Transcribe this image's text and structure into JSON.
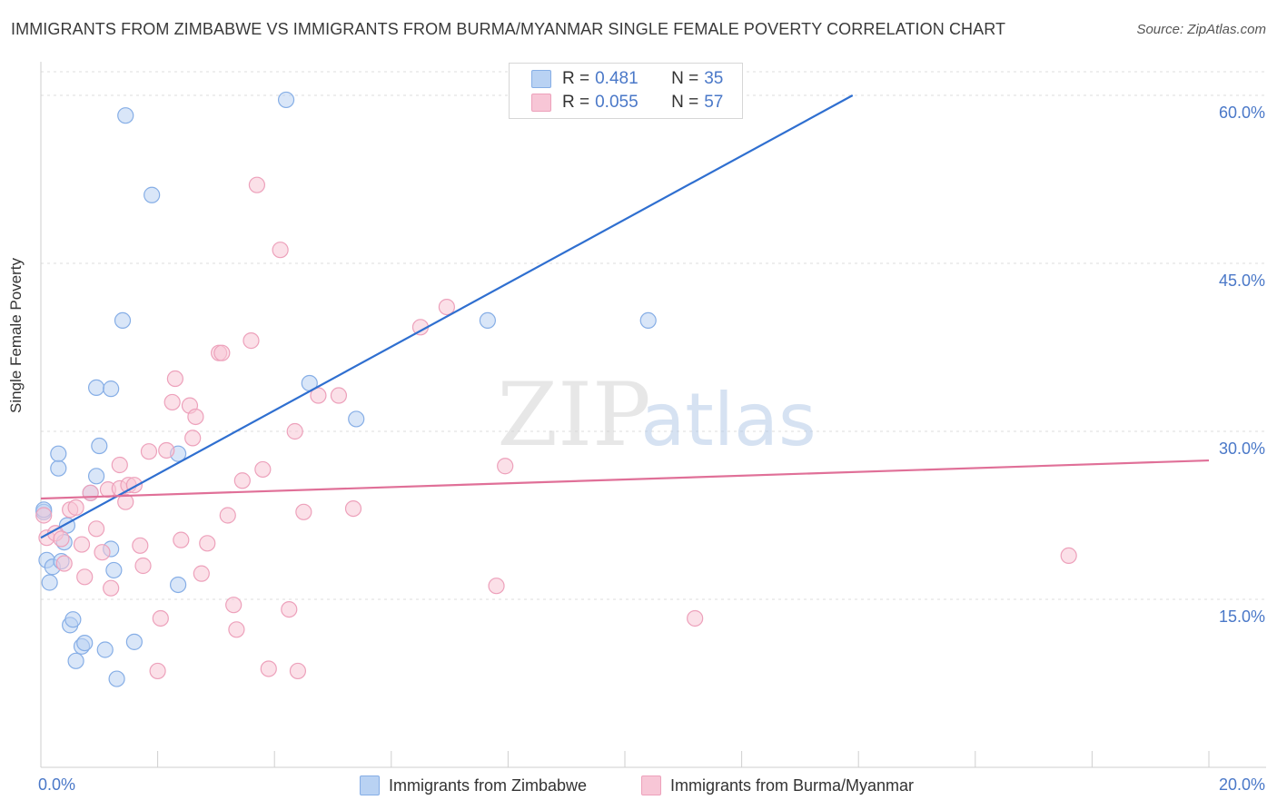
{
  "title": "IMMIGRANTS FROM ZIMBABWE VS IMMIGRANTS FROM BURMA/MYANMAR SINGLE FEMALE POVERTY CORRELATION CHART",
  "source": "Source: ZipAtlas.com",
  "watermark": {
    "zip": "ZIP",
    "atlas": "atlas"
  },
  "colors": {
    "blue_fill": "#b9d2f3",
    "blue_stroke": "#86aee6",
    "blue_line": "#2f6fd0",
    "pink_fill": "#f7c6d6",
    "pink_stroke": "#eda1bb",
    "pink_line": "#e07098",
    "tick_label": "#4a78c8"
  },
  "legend": {
    "zimbabwe": {
      "r_label": "R =",
      "r_value": "0.481",
      "n_label": "N =",
      "n_value": "35"
    },
    "burma": {
      "r_label": "R =",
      "r_value": "0.055",
      "n_label": "N =",
      "n_value": "57"
    }
  },
  "bottom_legend": {
    "zimbabwe": "Immigrants from Zimbabwe",
    "burma": "Immigrants from Burma/Myanmar"
  },
  "chart_data": {
    "type": "scatter",
    "xlabel": "",
    "ylabel": "Single Female Poverty",
    "xlim": [
      0,
      20
    ],
    "ylim": [
      0,
      63
    ],
    "x_tick_labels": [
      {
        "value": 0,
        "label": "0.0%"
      },
      {
        "value": 20,
        "label": "20.0%"
      }
    ],
    "y_tick_labels": [
      {
        "value": 15,
        "label": "15.0%"
      },
      {
        "value": 30,
        "label": "30.0%"
      },
      {
        "value": 45,
        "label": "45.0%"
      },
      {
        "value": 60,
        "label": "60.0%"
      }
    ],
    "series": [
      {
        "name": "Immigrants from Zimbabwe",
        "color": "blue",
        "trend": {
          "x": [
            0,
            13.9
          ],
          "y": [
            20.5,
            60
          ]
        },
        "points": [
          [
            0.05,
            22.8
          ],
          [
            0.1,
            18.5
          ],
          [
            0.15,
            16.5
          ],
          [
            0.2,
            17.9
          ],
          [
            0.3,
            26.7
          ],
          [
            0.35,
            18.4
          ],
          [
            0.4,
            20.1
          ],
          [
            0.45,
            21.6
          ],
          [
            0.5,
            12.7
          ],
          [
            0.55,
            13.2
          ],
          [
            0.6,
            9.5
          ],
          [
            0.7,
            10.8
          ],
          [
            0.75,
            11.1
          ],
          [
            0.3,
            28.0
          ],
          [
            0.85,
            24.5
          ],
          [
            0.95,
            26.0
          ],
          [
            1.0,
            28.7
          ],
          [
            1.1,
            10.5
          ],
          [
            1.2,
            19.5
          ],
          [
            1.25,
            17.6
          ],
          [
            0.95,
            33.9
          ],
          [
            1.2,
            33.8
          ],
          [
            1.3,
            7.9
          ],
          [
            1.4,
            39.9
          ],
          [
            1.45,
            58.2
          ],
          [
            1.6,
            11.2
          ],
          [
            1.9,
            51.1
          ],
          [
            2.35,
            16.3
          ],
          [
            2.35,
            28.0
          ],
          [
            4.2,
            59.6
          ],
          [
            4.6,
            34.3
          ],
          [
            5.4,
            31.1
          ],
          [
            7.65,
            39.9
          ],
          [
            10.4,
            39.9
          ],
          [
            0.05,
            23.0
          ]
        ]
      },
      {
        "name": "Immigrants from Burma/Myanmar",
        "color": "pink",
        "trend": {
          "x": [
            0,
            20
          ],
          "y": [
            24.0,
            27.4
          ]
        },
        "points": [
          [
            0.05,
            22.5
          ],
          [
            0.1,
            20.5
          ],
          [
            0.25,
            20.9
          ],
          [
            0.35,
            20.4
          ],
          [
            0.4,
            18.2
          ],
          [
            0.5,
            23.0
          ],
          [
            0.6,
            23.2
          ],
          [
            0.7,
            19.9
          ],
          [
            0.75,
            17.0
          ],
          [
            0.85,
            24.5
          ],
          [
            0.95,
            21.3
          ],
          [
            1.05,
            19.2
          ],
          [
            1.15,
            24.8
          ],
          [
            1.2,
            16.0
          ],
          [
            1.35,
            24.9
          ],
          [
            1.35,
            27.0
          ],
          [
            1.45,
            23.7
          ],
          [
            1.5,
            25.2
          ],
          [
            1.6,
            25.2
          ],
          [
            1.7,
            19.8
          ],
          [
            1.75,
            18.0
          ],
          [
            1.85,
            28.2
          ],
          [
            2.05,
            13.3
          ],
          [
            2.0,
            8.6
          ],
          [
            2.15,
            28.3
          ],
          [
            2.25,
            32.6
          ],
          [
            2.3,
            34.7
          ],
          [
            2.4,
            20.3
          ],
          [
            2.55,
            32.3
          ],
          [
            2.6,
            29.4
          ],
          [
            2.65,
            31.3
          ],
          [
            2.75,
            17.3
          ],
          [
            2.85,
            20.0
          ],
          [
            3.05,
            37.0
          ],
          [
            3.1,
            37.0
          ],
          [
            3.2,
            22.5
          ],
          [
            3.3,
            14.5
          ],
          [
            3.35,
            12.3
          ],
          [
            3.45,
            25.6
          ],
          [
            3.6,
            38.1
          ],
          [
            3.7,
            52.0
          ],
          [
            3.8,
            26.6
          ],
          [
            3.9,
            8.8
          ],
          [
            4.1,
            46.2
          ],
          [
            4.25,
            14.1
          ],
          [
            4.35,
            30.0
          ],
          [
            4.4,
            8.6
          ],
          [
            4.5,
            22.8
          ],
          [
            4.75,
            33.2
          ],
          [
            5.1,
            33.2
          ],
          [
            5.35,
            23.1
          ],
          [
            6.5,
            39.3
          ],
          [
            6.95,
            41.1
          ],
          [
            7.8,
            16.2
          ],
          [
            7.95,
            26.9
          ],
          [
            11.2,
            13.3
          ],
          [
            17.6,
            18.9
          ]
        ]
      }
    ]
  }
}
